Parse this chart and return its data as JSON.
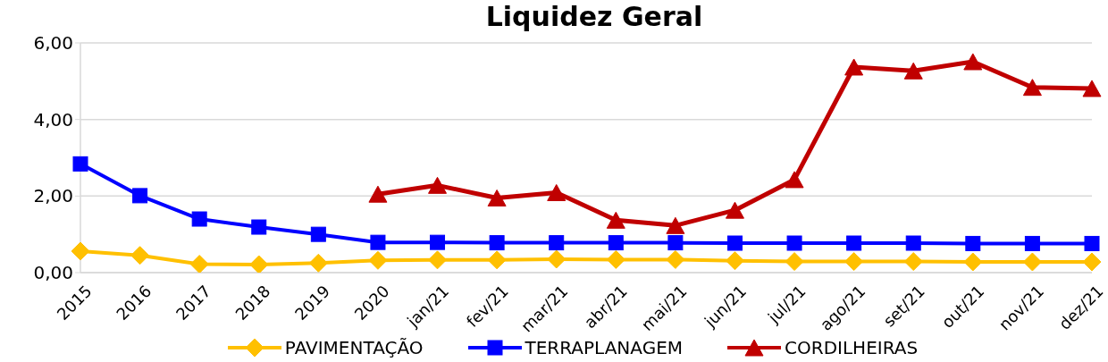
{
  "chart_data": {
    "type": "line",
    "title": "Liquidez Geral",
    "categories": [
      "2015",
      "2016",
      "2017",
      "2018",
      "2019",
      "2020",
      "jan/21",
      "fev/21",
      "mar/21",
      "abr/21",
      "mai/21",
      "jun/21",
      "jul/21",
      "ago/21",
      "set/21",
      "out/21",
      "nov/21",
      "dez/21"
    ],
    "series": [
      {
        "name": "PAVIMENTAÇÃO",
        "color": "#ffc000",
        "marker": "diamond",
        "values": [
          0.56,
          0.45,
          0.22,
          0.21,
          0.25,
          0.32,
          0.33,
          0.33,
          0.35,
          0.34,
          0.34,
          0.31,
          0.29,
          0.29,
          0.29,
          0.28,
          0.28,
          0.28
        ]
      },
      {
        "name": "TERRAPLANAGEM",
        "color": "#0000ff",
        "marker": "square",
        "values": [
          2.84,
          2.01,
          1.4,
          1.19,
          1.0,
          0.79,
          0.79,
          0.78,
          0.78,
          0.78,
          0.78,
          0.77,
          0.77,
          0.77,
          0.77,
          0.76,
          0.76,
          0.76
        ]
      },
      {
        "name": "CORDILHEIRAS",
        "color": "#c00000",
        "marker": "triangle",
        "values": [
          null,
          null,
          null,
          null,
          null,
          2.05,
          2.28,
          1.95,
          2.09,
          1.37,
          1.23,
          1.63,
          2.43,
          5.37,
          5.27,
          5.51,
          4.84,
          4.81
        ]
      }
    ],
    "ylim": [
      0,
      6
    ],
    "yticks": [
      {
        "value": 0,
        "label": "0,00"
      },
      {
        "value": 2,
        "label": "2,00"
      },
      {
        "value": 4,
        "label": "4,00"
      },
      {
        "value": 6,
        "label": "6,00"
      }
    ],
    "grid": "y",
    "legend": "bottom"
  }
}
